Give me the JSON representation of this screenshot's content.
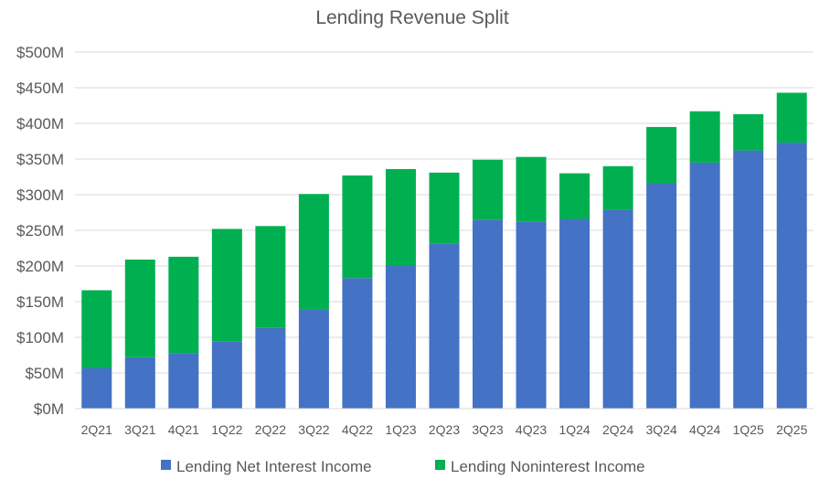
{
  "chart_data": {
    "type": "bar",
    "stacked": true,
    "title": "Lending Revenue Split",
    "xlabel": "",
    "ylabel": "",
    "categories": [
      "2Q21",
      "3Q21",
      "4Q21",
      "1Q22",
      "2Q22",
      "3Q22",
      "4Q22",
      "1Q23",
      "2Q23",
      "3Q23",
      "4Q23",
      "1Q24",
      "2Q24",
      "3Q24",
      "4Q24",
      "1Q25",
      "2Q25"
    ],
    "series": [
      {
        "name": "Lending Net Interest Income",
        "color": "#4472C4",
        "values": [
          57,
          72,
          78,
          94,
          113,
          139,
          183,
          200,
          231,
          265,
          262,
          266,
          279,
          316,
          345,
          362,
          373
        ]
      },
      {
        "name": "Lending Noninterest Income",
        "color": "#00B050",
        "values": [
          109,
          137,
          135,
          158,
          143,
          162,
          144,
          136,
          100,
          84,
          91,
          64,
          61,
          79,
          72,
          51,
          70
        ]
      }
    ],
    "ylim": [
      0,
      500
    ],
    "yticks": [
      0,
      50,
      100,
      150,
      200,
      250,
      300,
      350,
      400,
      450,
      500
    ],
    "ytick_labels": [
      "$0M",
      "$50M",
      "$100M",
      "$150M",
      "$200M",
      "$250M",
      "$300M",
      "$350M",
      "$400M",
      "$450M",
      "$500M"
    ],
    "grid": true,
    "legend_position": "bottom"
  }
}
